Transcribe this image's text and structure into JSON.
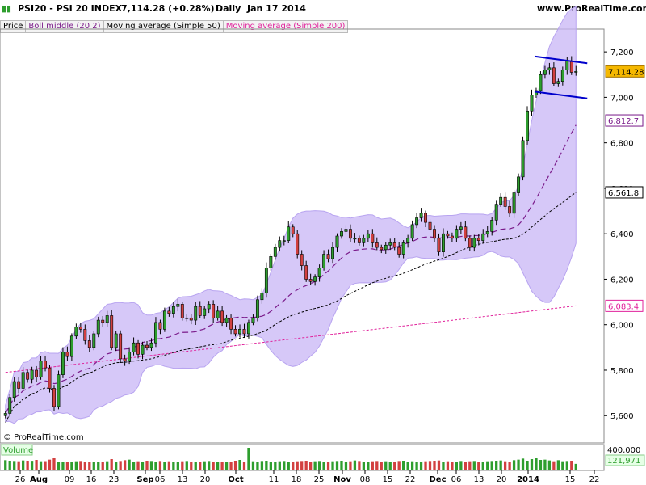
{
  "header": {
    "symbol": "PSI20 - PSI 20 INDEX",
    "quote": "7,114.28 (+0.28%)",
    "period": "Daily",
    "date": "Jan 17 2014",
    "site": "www.ProRealTime.com"
  },
  "legend": {
    "price": "Price",
    "boll": "Boll middle (20 2)",
    "ma50": "Moving average (Simple 50)",
    "ma200": "Moving average (Simple 200)"
  },
  "watermark": "© ProRealTime.com",
  "volume_label": "Volume",
  "colors": {
    "up": "#2e9e2e",
    "down": "#d24040",
    "band": "#c8b6f5",
    "boll_middle": "#7a1a8a",
    "ma50": "#000000",
    "ma200": "#e0209a",
    "price_tag": "#f5b800",
    "trend": "#0000cc"
  },
  "chart_data": {
    "type": "candlestick",
    "y_axis": {
      "ticks": [
        5600,
        5800,
        6000,
        6200,
        6400,
        6600,
        6800,
        7000,
        7200
      ],
      "tick_labels": [
        "5,600",
        "5,800",
        "6,000",
        "6,200",
        "6,400",
        "6,600",
        "6,800",
        "7,000",
        "7,200"
      ],
      "range": [
        5480,
        7300
      ]
    },
    "x_labels": [
      "26",
      "Aug",
      "09",
      "16",
      "23",
      "Sep",
      "06",
      "13",
      "20",
      "Oct",
      "11",
      "18",
      "25",
      "Nov",
      "08",
      "15",
      "22",
      "Dec",
      "06",
      "13",
      "20",
      "2014",
      "15",
      "22"
    ],
    "bold_x_labels": [
      "Aug",
      "Sep",
      "Oct",
      "Nov",
      "Dec",
      "2014"
    ],
    "last_price": "7,114.28",
    "indicator_values": {
      "boll_middle_last": "6,812.7",
      "ma50_last": "6,561.8",
      "ma200_last": "6,083.4"
    },
    "close": [
      5610,
      5680,
      5750,
      5720,
      5790,
      5760,
      5800,
      5770,
      5840,
      5810,
      5720,
      5640,
      5780,
      5880,
      5860,
      5950,
      5990,
      5980,
      5930,
      5900,
      5960,
      6020,
      6010,
      6040,
      5900,
      5960,
      5850,
      5840,
      5880,
      5920,
      5870,
      5910,
      5900,
      5920,
      6010,
      5980,
      6060,
      6050,
      6080,
      6090,
      6030,
      6030,
      6020,
      6080,
      6040,
      6070,
      6090,
      6030,
      6060,
      6010,
      6030,
      5980,
      5960,
      5980,
      5960,
      6010,
      6030,
      6110,
      6140,
      6250,
      6300,
      6340,
      6370,
      6370,
      6430,
      6400,
      6310,
      6260,
      6200,
      6190,
      6210,
      6250,
      6310,
      6290,
      6340,
      6390,
      6410,
      6420,
      6380,
      6380,
      6360,
      6380,
      6400,
      6360,
      6340,
      6330,
      6350,
      6360,
      6340,
      6310,
      6360,
      6380,
      6440,
      6470,
      6490,
      6450,
      6420,
      6380,
      6320,
      6400,
      6390,
      6380,
      6420,
      6430,
      6380,
      6340,
      6380,
      6370,
      6400,
      6410,
      6460,
      6530,
      6560,
      6520,
      6490,
      6580,
      6650,
      6810,
      6940,
      7010,
      7030,
      7100,
      7120,
      7130,
      7060,
      7070,
      7120,
      7160,
      7110,
      7114
    ],
    "volume": [
      190000,
      180000,
      175000,
      170000,
      185000,
      180000,
      178000,
      195000,
      170000,
      172000,
      200000,
      230000,
      160000,
      165000,
      150000,
      155000,
      170000,
      175000,
      160000,
      150000,
      155000,
      160000,
      165000,
      170000,
      210000,
      160000,
      175000,
      190000,
      200000,
      160000,
      170000,
      165000,
      180000,
      175000,
      160000,
      175000,
      165000,
      170000,
      160000,
      165000,
      170000,
      175000,
      155000,
      160000,
      165000,
      170000,
      175000,
      165000,
      160000,
      150000,
      155000,
      160000,
      180000,
      195000,
      160000,
      420000,
      170000,
      160000,
      175000,
      180000,
      160000,
      165000,
      170000,
      175000,
      160000,
      155000,
      170000,
      175000,
      180000,
      165000,
      170000,
      175000,
      160000,
      165000,
      170000,
      175000,
      180000,
      165000,
      170000,
      185000,
      175000,
      160000,
      165000,
      170000,
      175000,
      165000,
      170000,
      160000,
      150000,
      175000,
      180000,
      165000,
      170000,
      165000,
      160000,
      170000,
      175000,
      180000,
      185000,
      165000,
      170000,
      160000,
      150000,
      175000,
      165000,
      170000,
      175000,
      160000,
      165000,
      170000,
      175000,
      180000,
      185000,
      170000,
      165000,
      190000,
      200000,
      220000,
      180000,
      210000,
      230000,
      195000,
      200000,
      185000,
      170000,
      190000,
      170000,
      175000,
      180000,
      121971
    ],
    "volume_axis": {
      "tick_labels": [
        "400,000",
        "121,971"
      ]
    }
  }
}
